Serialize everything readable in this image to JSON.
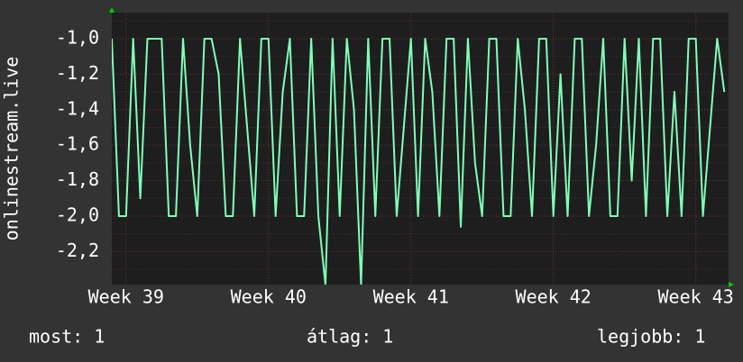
{
  "chart_data": {
    "type": "line",
    "y_label": "onlinestream.live",
    "x": [
      38.9,
      38.95,
      39,
      39.05,
      39.1,
      39.15,
      39.2,
      39.25,
      39.3,
      39.35,
      39.4,
      39.45,
      39.5,
      39.55,
      39.6,
      39.65,
      39.7,
      39.75,
      39.8,
      39.85,
      39.9,
      39.95,
      40,
      40.05,
      40.1,
      40.15,
      40.2,
      40.25,
      40.3,
      40.35,
      40.4,
      40.45,
      40.5,
      40.55,
      40.6,
      40.65,
      40.7,
      40.75,
      40.8,
      40.85,
      40.9,
      40.95,
      41,
      41.05,
      41.1,
      41.15,
      41.2,
      41.25,
      41.3,
      41.35,
      41.4,
      41.45,
      41.5,
      41.55,
      41.6,
      41.65,
      41.7,
      41.75,
      41.8,
      41.85,
      41.9,
      41.95,
      42,
      42.05,
      42.1,
      42.15,
      42.2,
      42.25,
      42.3,
      42.35,
      42.4,
      42.45,
      42.5,
      42.55,
      42.6,
      42.65,
      42.7,
      42.75,
      42.8,
      42.85,
      42.9,
      42.95,
      43,
      43.05,
      43.1,
      43.15,
      43.2
    ],
    "series": [
      {
        "color": "#80ffb8",
        "values": [
          -1,
          -2,
          -2,
          -1,
          -1.9,
          -1,
          -1,
          -1,
          -2,
          -2,
          -1,
          -1.6,
          -2,
          -1,
          -1,
          -1.2,
          -2,
          -2,
          -1,
          -1.5,
          -2,
          -1,
          -1,
          -2,
          -1.3,
          -1,
          -2,
          -2,
          -1,
          -2,
          -2.39,
          -1,
          -2,
          -1,
          -1.4,
          -2.39,
          -1,
          -2,
          -1,
          -1,
          -2,
          -1.5,
          -1,
          -2,
          -1,
          -1.3,
          -2,
          -1,
          -1,
          -2.06,
          -1,
          -1.7,
          -2,
          -1,
          -1,
          -2,
          -2,
          -1,
          -1.4,
          -2,
          -1,
          -1,
          -2,
          -1.2,
          -2,
          -1,
          -1,
          -2,
          -1.6,
          -1,
          -2,
          -2,
          -1,
          -1.8,
          -1,
          -2,
          -1,
          -1,
          -2,
          -1.3,
          -2,
          -1,
          -1,
          -2,
          -1.5,
          -1,
          -1.3
        ]
      }
    ],
    "xlim": [
      38.9,
      43.23
    ],
    "xticks": [
      {
        "value": 39,
        "label": "Week 39"
      },
      {
        "value": 40,
        "label": "Week 40"
      },
      {
        "value": 41,
        "label": "Week 41"
      },
      {
        "value": 42,
        "label": "Week 42"
      },
      {
        "value": 43,
        "label": "Week 43"
      }
    ],
    "ylim": [
      -2.386,
      -0.853
    ],
    "yticks": [
      {
        "value": -1.0,
        "label": "-1,0"
      },
      {
        "value": -1.2,
        "label": "-1,2"
      },
      {
        "value": -1.4,
        "label": "-1,4"
      },
      {
        "value": -1.6,
        "label": "-1,6"
      },
      {
        "value": -1.8,
        "label": "-1,8"
      },
      {
        "value": -2.0,
        "label": "-2,0"
      },
      {
        "value": -2.2,
        "label": "-2,2"
      }
    ],
    "minor_yticks": [
      -0.9,
      -1.1,
      -1.3,
      -1.5,
      -1.7,
      -1.9,
      -2.1,
      -2.3
    ],
    "grid": true,
    "stats": [
      "most: 1",
      "átlag: 1",
      "legjobb: 1"
    ]
  }
}
